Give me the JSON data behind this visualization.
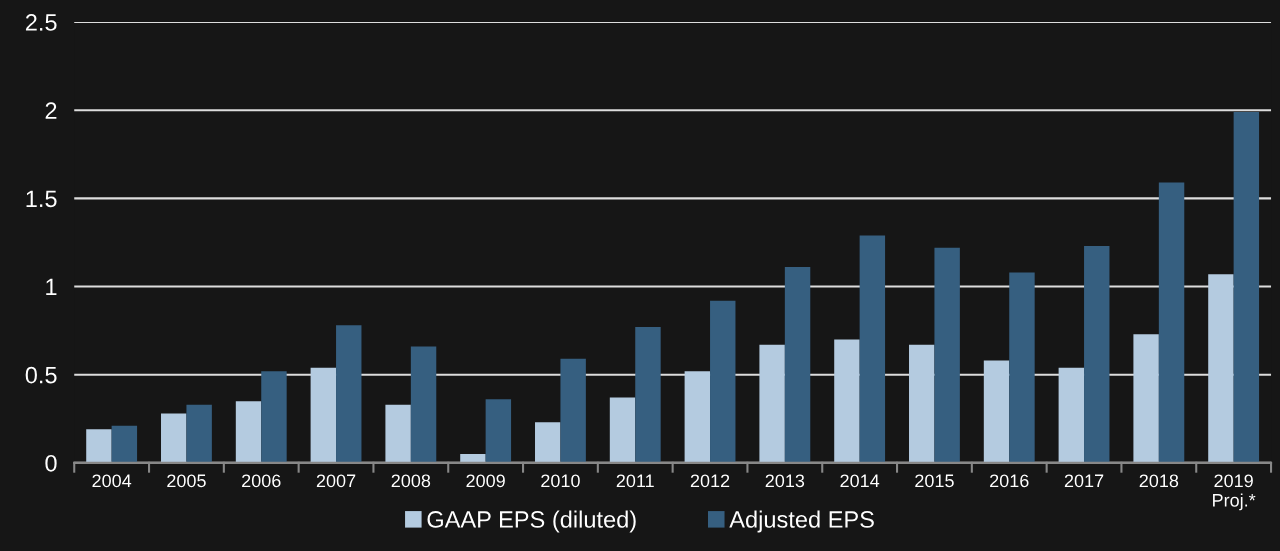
{
  "chart_data": {
    "type": "bar",
    "categories": [
      "2004",
      "2005",
      "2006",
      "2007",
      "2008",
      "2009",
      "2010",
      "2011",
      "2012",
      "2013",
      "2014",
      "2015",
      "2016",
      "2017",
      "2018",
      "2019\nProj.*"
    ],
    "series": [
      {
        "name": "GAAP EPS (diluted)",
        "color": "#b4cbe0",
        "values": [
          0.19,
          0.28,
          0.35,
          0.54,
          0.33,
          0.05,
          0.23,
          0.37,
          0.52,
          0.67,
          0.7,
          0.67,
          0.58,
          0.54,
          0.73,
          1.07
        ]
      },
      {
        "name": "Adjusted EPS",
        "color": "#365f80",
        "values": [
          0.21,
          0.33,
          0.52,
          0.78,
          0.66,
          0.36,
          0.59,
          0.77,
          0.92,
          1.11,
          1.29,
          1.22,
          1.08,
          1.23,
          1.59,
          1.99
        ]
      }
    ],
    "ylim": [
      0,
      2.5
    ],
    "yticks": [
      0,
      0.5,
      1,
      1.5,
      2,
      2.5
    ],
    "grid": "y",
    "legend": "bottom"
  }
}
